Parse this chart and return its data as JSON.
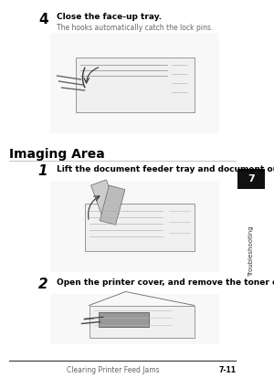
{
  "bg_color": "#ffffff",
  "step4_number": "4",
  "step4_bold": "Close the face-up tray.",
  "step4_sub": "The hooks automatically catch the lock pins.",
  "section_title": "Imaging Area",
  "step1_number": "1",
  "step1_bold": "Lift the document feeder tray and document output tray.",
  "step2_number": "2",
  "step2_bold": "Open the printer cover, and remove the toner cartridge.",
  "sidebar_label": "Troubleshooting",
  "sidebar_number": "7",
  "footer_left": "Clearing Printer Feed Jams",
  "footer_right": "7-11",
  "text_color": "#000000",
  "gray_color": "#666666",
  "light_gray": "#aaaaaa",
  "sidebar_bg": "#1a1a1a",
  "sidebar_box_bg": "#1a1a1a"
}
